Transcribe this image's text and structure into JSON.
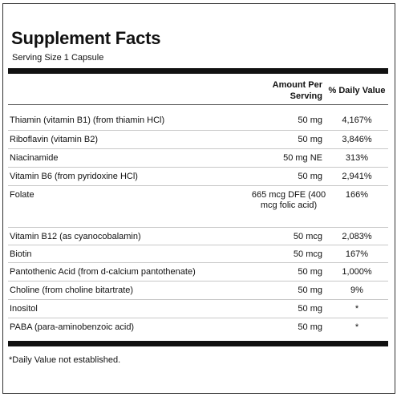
{
  "label": {
    "title": "Supplement Facts",
    "serving": "Serving Size 1 Capsule",
    "header": {
      "amount": "Amount Per Serving",
      "daily_value": "% Daily Value"
    },
    "rows": [
      {
        "name": "Thiamin (vitamin B1) (from thiamin HCl)",
        "amount": "50 mg",
        "dv": "4,167%"
      },
      {
        "name": "Riboflavin (vitamin B2)",
        "amount": "50 mg",
        "dv": "3,846%"
      },
      {
        "name": "Niacinamide",
        "amount": "50 mg NE",
        "dv": "313%"
      },
      {
        "name": "Vitamin B6 (from pyridoxine HCl)",
        "amount": "50 mg",
        "dv": "2,941%"
      },
      {
        "name": "Folate",
        "amount": "665 mcg DFE (400 mcg folic acid)",
        "dv": "166%"
      },
      {
        "name": "Vitamin B12 (as cyanocobalamin)",
        "amount": "50 mcg",
        "dv": "2,083%"
      },
      {
        "name": "Biotin",
        "amount": "50 mcg",
        "dv": "167%"
      },
      {
        "name": "Pantothenic Acid (from d-calcium pantothenate)",
        "amount": "50 mg",
        "dv": "1,000%"
      },
      {
        "name": "Choline (from choline bitartrate)",
        "amount": "50 mg",
        "dv": "9%"
      },
      {
        "name": "Inositol",
        "amount": "50 mg",
        "dv": "*"
      },
      {
        "name": "PABA (para-aminobenzoic acid)",
        "amount": "50 mg",
        "dv": "*"
      }
    ],
    "footnote": "*Daily Value not established."
  }
}
